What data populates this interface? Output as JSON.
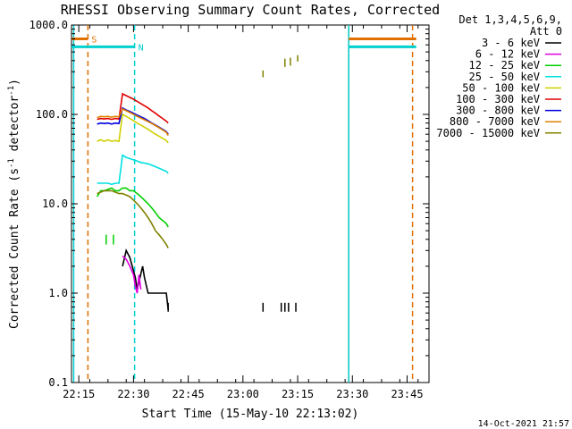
{
  "chart_data": {
    "type": "line",
    "title": "RHESSI Observing Summary Count Rates, Corrected",
    "xlabel": "Start Time (15-May-10 22:13:02)",
    "ylabel": "Corrected Count Rate (s",
    "ylabel_sup": "-1",
    "ylabel_mid": " detector",
    "ylabel_sup2": "-1",
    "ylabel_end": ")",
    "x_unit": "minutes after 22:13:02",
    "xlim": [
      0,
      98
    ],
    "ylim": [
      0.1,
      1000
    ],
    "yscale": "log",
    "x_ticks": [
      {
        "v": 2,
        "label": "22:15"
      },
      {
        "v": 17,
        "label": "22:30"
      },
      {
        "v": 32,
        "label": "22:45"
      },
      {
        "v": 47,
        "label": "23:00"
      },
      {
        "v": 62,
        "label": "23:15"
      },
      {
        "v": 77,
        "label": "23:30"
      },
      {
        "v": 92,
        "label": "23:45"
      }
    ],
    "y_ticks": [
      {
        "v": 0.1,
        "label": "0.1"
      },
      {
        "v": 1,
        "label": "1.0"
      },
      {
        "v": 10,
        "label": "10.0"
      },
      {
        "v": 100,
        "label": "100.0"
      },
      {
        "v": 1000,
        "label": "1000.0"
      }
    ],
    "legend": {
      "placement": "right",
      "header": [
        "Det 1,3,4,5,6,9,",
        "Att 0"
      ]
    },
    "series": [
      {
        "name": "3 - 6 keV",
        "color": "#000000",
        "x": [
          14.0,
          15.0,
          16.0,
          17.5,
          18.0,
          19.5,
          20.0,
          21.0,
          22.0,
          23.0,
          24.0,
          25.0,
          26.0,
          26.5
        ],
        "y": [
          2.0,
          3.0,
          2.5,
          1.5,
          1.1,
          2.0,
          1.5,
          1.0,
          1.0,
          1.0,
          1.0,
          1.0,
          1.0,
          0.65
        ]
      },
      {
        "name": "6 - 12 keV",
        "color": "#e000e0",
        "x": [
          14.0,
          15.0,
          16.0,
          17.0,
          17.5,
          18.0,
          18.5,
          19.0
        ],
        "y": [
          2.6,
          2.4,
          2.0,
          1.6,
          1.2,
          1.0,
          1.6,
          1.1
        ]
      },
      {
        "name": "12 - 25 keV",
        "color": "#00d000",
        "x": [
          7.0,
          8.0,
          9.0,
          10.0,
          11.0,
          12.0,
          13.0,
          14.0,
          15.0,
          16.0,
          17.0,
          18.0,
          19.0,
          20.0,
          21.0,
          22.0,
          23.0,
          24.0,
          25.0,
          26.0,
          26.5
        ],
        "y": [
          12.0,
          14.0,
          14.0,
          14.5,
          15.0,
          14.0,
          14.0,
          15.0,
          15.0,
          14.0,
          14.0,
          13.0,
          12.0,
          11.0,
          10.0,
          9.0,
          8.0,
          7.0,
          6.5,
          6.0,
          5.5
        ]
      },
      {
        "name": "25 - 50 keV",
        "color": "#00e0e0",
        "x": [
          7.0,
          8.0,
          9.0,
          10.0,
          11.0,
          12.0,
          13.0,
          14.0,
          15.0,
          16.0,
          17.0,
          18.0,
          19.0,
          20.0,
          21.0,
          22.0,
          23.0,
          24.0,
          25.0,
          26.0,
          26.5
        ],
        "y": [
          17.0,
          17.0,
          17.0,
          17.0,
          16.5,
          17.0,
          17.0,
          35.0,
          33.0,
          32.0,
          31.0,
          30.0,
          29.0,
          28.5,
          28.0,
          27.0,
          26.0,
          25.0,
          24.0,
          23.0,
          22.0
        ]
      },
      {
        "name": "50 - 100 keV",
        "color": "#d0d000",
        "x": [
          7.0,
          8.0,
          9.0,
          10.0,
          11.0,
          12.0,
          13.0,
          14.0,
          15.0,
          16.0,
          17.0,
          18.0,
          19.0,
          20.0,
          21.0,
          22.0,
          23.0,
          24.0,
          25.0,
          26.0,
          26.5
        ],
        "y": [
          50.0,
          52.0,
          50.0,
          52.0,
          50.0,
          51.0,
          50.0,
          100.0,
          95.0,
          90.0,
          85.0,
          80.0,
          76.0,
          72.0,
          68.0,
          64.0,
          60.0,
          57.0,
          54.0,
          51.0,
          48.0
        ]
      },
      {
        "name": "100 - 300 keV",
        "color": "#e00000",
        "x": [
          7.0,
          8.0,
          9.0,
          10.0,
          11.0,
          12.0,
          13.0,
          14.0,
          15.0,
          16.0,
          17.0,
          18.0,
          19.0,
          20.0,
          21.0,
          22.0,
          23.0,
          24.0,
          25.0,
          26.0,
          26.5
        ],
        "y": [
          88.0,
          90.0,
          89.0,
          90.0,
          88.0,
          90.0,
          89.0,
          170.0,
          162.0,
          155.0,
          148.0,
          140.0,
          132.0,
          125.0,
          118.0,
          110.0,
          103.0,
          96.0,
          90.0,
          84.0,
          80.0
        ]
      },
      {
        "name": "300 - 800 keV",
        "color": "#0000e0",
        "x": [
          7.0,
          8.0,
          9.0,
          10.0,
          11.0,
          12.0,
          13.0,
          14.0,
          15.0,
          16.0,
          17.0,
          18.0,
          19.0,
          20.0,
          21.0,
          22.0,
          23.0,
          24.0,
          25.0,
          26.0,
          26.5
        ],
        "y": [
          78.0,
          80.0,
          79.0,
          80.0,
          78.0,
          80.0,
          79.0,
          118.0,
          112.0,
          108.0,
          103.0,
          98.0,
          94.0,
          90.0,
          85.0,
          80.0,
          76.0,
          72.0,
          68.0,
          64.0,
          60.0
        ]
      },
      {
        "name": "800 - 7000 keV",
        "color": "#e08000",
        "x": [
          7.0,
          8.0,
          9.0,
          10.0,
          11.0,
          12.0,
          13.0,
          14.0,
          15.0,
          16.0,
          17.0,
          18.0,
          19.0,
          20.0,
          21.0,
          22.0,
          23.0,
          24.0,
          25.0,
          26.0,
          26.5
        ],
        "y": [
          92.0,
          95.0,
          94.0,
          95.0,
          93.0,
          95.0,
          94.0,
          115.0,
          110.0,
          105.0,
          100.0,
          95.0,
          91.0,
          87.0,
          83.0,
          79.0,
          75.0,
          71.0,
          67.0,
          63.0,
          58.0
        ]
      },
      {
        "name": "7000 - 15000 keV",
        "color": "#808000",
        "x": [
          7.0,
          8.0,
          9.0,
          10.0,
          11.0,
          12.0,
          13.0,
          14.0,
          15.0,
          16.0,
          17.0,
          18.0,
          19.0,
          20.0,
          21.0,
          22.0,
          23.0,
          24.0,
          25.0,
          26.0,
          26.5
        ],
        "y": [
          13.0,
          13.5,
          14.0,
          14.0,
          14.0,
          13.5,
          13.0,
          13.0,
          12.5,
          12.0,
          11.0,
          10.0,
          9.0,
          8.0,
          7.0,
          6.0,
          5.0,
          4.5,
          4.0,
          3.5,
          3.2
        ]
      }
    ],
    "spikes": [
      {
        "series": 0,
        "x": 26.5,
        "y_low": 0.62,
        "y_high": 0.78
      },
      {
        "series": 0,
        "x": 52.5,
        "y_low": 0.62,
        "y_high": 0.78
      },
      {
        "series": 0,
        "x": 57.5,
        "y_low": 0.62,
        "y_high": 0.78
      },
      {
        "series": 0,
        "x": 58.5,
        "y_low": 0.62,
        "y_high": 0.78
      },
      {
        "series": 0,
        "x": 59.5,
        "y_low": 0.62,
        "y_high": 0.78
      },
      {
        "series": 0,
        "x": 61.5,
        "y_low": 0.62,
        "y_high": 0.78
      },
      {
        "series": 2,
        "x": 9.5,
        "y_low": 3.5,
        "y_high": 4.5
      },
      {
        "series": 2,
        "x": 11.5,
        "y_low": 3.5,
        "y_high": 4.5
      },
      {
        "series": 8,
        "x": 52.5,
        "y_low": 260,
        "y_high": 310
      },
      {
        "series": 8,
        "x": 58.5,
        "y_low": 340,
        "y_high": 420
      },
      {
        "series": 8,
        "x": 60.0,
        "y_low": 350,
        "y_high": 430
      },
      {
        "series": 8,
        "x": 62.0,
        "y_low": 390,
        "y_high": 460
      }
    ],
    "state_lines": [
      {
        "kind": "attenuator",
        "style": "solid",
        "color": "#e07000",
        "x": 76.0
      },
      {
        "kind": "saa",
        "style": "dashed",
        "color": "#e07000",
        "x": 4.5
      },
      {
        "kind": "saa",
        "style": "dashed",
        "color": "#e07000",
        "x": 93.5
      },
      {
        "kind": "night",
        "style": "dashed",
        "color": "#00d0d0",
        "x": 17.3
      },
      {
        "kind": "night",
        "style": "solid",
        "color": "#00d0d0",
        "x": 0.6
      },
      {
        "kind": "night",
        "style": "solid",
        "color": "#00d0d0",
        "x": 76.0
      }
    ],
    "state_bars": [
      {
        "label": "S",
        "color": "#e07000",
        "x0": 0,
        "x1": 4.5,
        "y": 700
      },
      {
        "label": "",
        "color": "#e07000",
        "x0": 76,
        "x1": 94.5,
        "y": 700
      },
      {
        "label": "N",
        "color": "#00d0d0",
        "x0": 0,
        "x1": 17.3,
        "y": 570
      },
      {
        "label": "",
        "color": "#00d0d0",
        "x0": 76,
        "x1": 94.5,
        "y": 570
      }
    ],
    "footer_timestamp": "14-Oct-2021 21:57"
  }
}
